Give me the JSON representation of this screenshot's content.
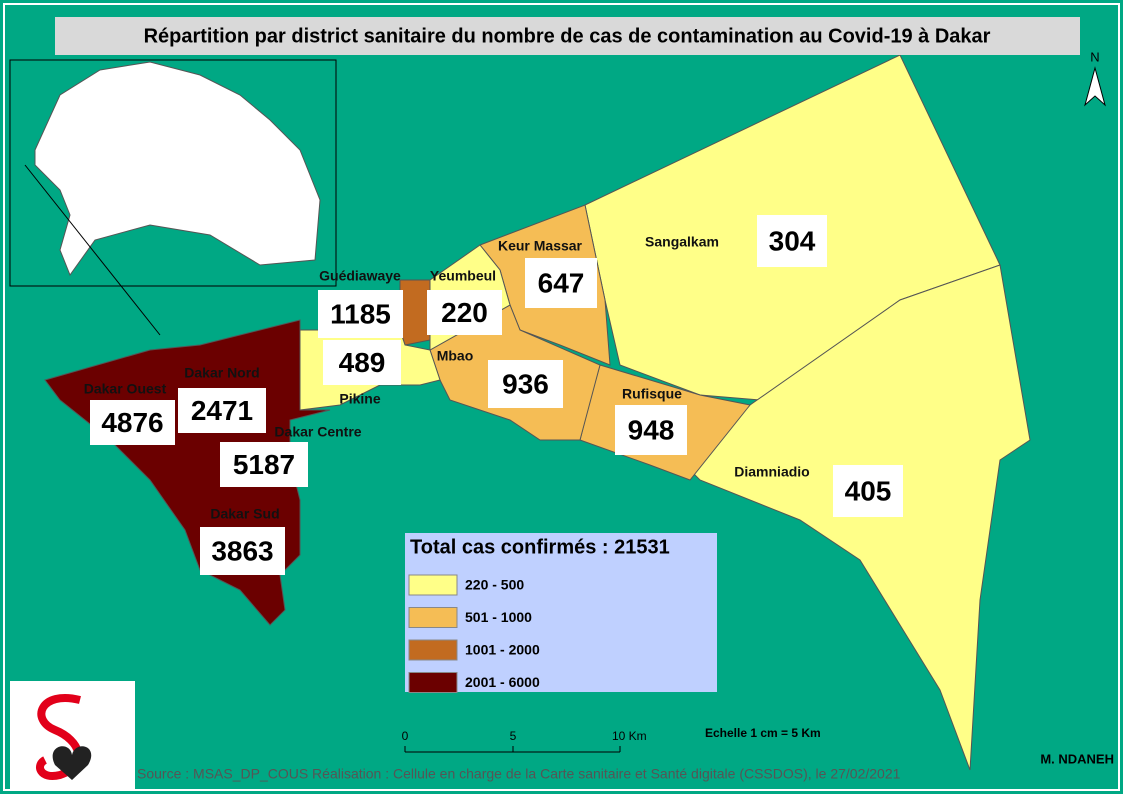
{
  "title": "Répartition par district sanitaire du nombre de cas de contamination au Covid-19 à Dakar",
  "districts": [
    {
      "name": "Dakar Ouest",
      "cases": 4876
    },
    {
      "name": "Dakar Nord",
      "cases": 2471
    },
    {
      "name": "Dakar Centre",
      "cases": 5187
    },
    {
      "name": "Dakar Sud",
      "cases": 3863
    },
    {
      "name": "Guédiawaye",
      "cases": 1185
    },
    {
      "name": "Yeumbeul",
      "cases": 220
    },
    {
      "name": "Pikine",
      "cases": 489
    },
    {
      "name": "Keur Massar",
      "cases": 647
    },
    {
      "name": "Mbao",
      "cases": 936
    },
    {
      "name": "Sangalkam",
      "cases": 304
    },
    {
      "name": "Rufisque",
      "cases": 948
    },
    {
      "name": "Diamniadio",
      "cases": 405
    }
  ],
  "legend": {
    "title": "Total cas confirmés : 21531",
    "classes": [
      {
        "label": "220 - 500",
        "color": "#ffff88"
      },
      {
        "label": "501 - 1000",
        "color": "#f5bd55"
      },
      {
        "label": "1001 - 2000",
        "color": "#c26b20"
      },
      {
        "label": "2001 - 6000",
        "color": "#6b0000"
      }
    ]
  },
  "scale": {
    "labels": [
      "0",
      "5",
      "10 Km"
    ],
    "note": "Echelle 1 cm = 5 Km"
  },
  "north": "N",
  "author": "M. NDANEH",
  "source": "Source : MSAS_DP_COUS Réalisation : Cellule en charge de la Carte sanitaire et Santé digitale (CSSDOS), le 27/02/2021"
}
